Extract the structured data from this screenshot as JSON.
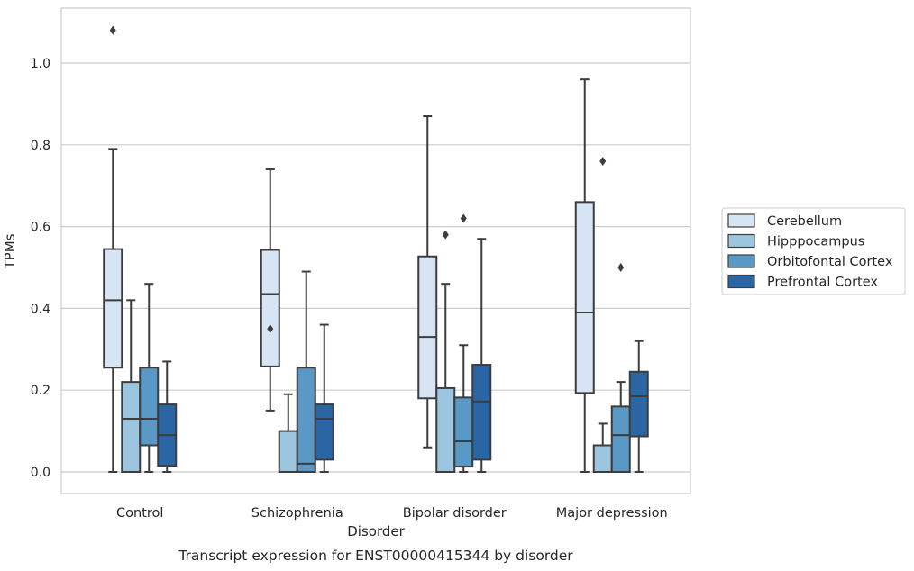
{
  "chart_data": {
    "type": "box",
    "title": "",
    "caption": "Transcript expression for ENST00000415344 by disorder",
    "xlabel": "Disorder",
    "ylabel": "TPMs",
    "ylim": [
      -0.05,
      1.14
    ],
    "yticks": [
      "0.0",
      "0.2",
      "0.4",
      "0.6",
      "0.8",
      "1.0"
    ],
    "grid": "horizontal",
    "legend_position": "right",
    "categories": [
      "Control",
      "Schizophrenia",
      "Bipolar disorder",
      "Major depression"
    ],
    "series": [
      {
        "name": "Cerebellum",
        "color": "#d6e4f3",
        "boxes": [
          {
            "whislo": 0.0,
            "q1": 0.255,
            "med": 0.42,
            "q3": 0.545,
            "whishi": 0.79,
            "fliers": [
              1.08
            ]
          },
          {
            "whislo": 0.15,
            "q1": 0.258,
            "med": 0.435,
            "q3": 0.543,
            "whishi": 0.74,
            "fliers": [
              0.35
            ]
          },
          {
            "whislo": 0.06,
            "q1": 0.18,
            "med": 0.33,
            "q3": 0.527,
            "whishi": 0.87,
            "fliers": []
          },
          {
            "whislo": 0.0,
            "q1": 0.193,
            "med": 0.39,
            "q3": 0.66,
            "whishi": 0.96,
            "fliers": []
          }
        ]
      },
      {
        "name": "Hipppocampus",
        "color": "#9cc5df",
        "boxes": [
          {
            "whislo": 0.0,
            "q1": 0.0,
            "med": 0.13,
            "q3": 0.22,
            "whishi": 0.42,
            "fliers": []
          },
          {
            "whislo": 0.0,
            "q1": 0.0,
            "med": 0.0,
            "q3": 0.1,
            "whishi": 0.19,
            "fliers": []
          },
          {
            "whislo": 0.0,
            "q1": 0.0,
            "med": 0.0,
            "q3": 0.205,
            "whishi": 0.46,
            "fliers": [
              0.58
            ]
          },
          {
            "whislo": 0.0,
            "q1": 0.0,
            "med": 0.0,
            "q3": 0.065,
            "whishi": 0.118,
            "fliers": [
              0.76
            ]
          }
        ]
      },
      {
        "name": "Orbitofontal Cortex",
        "color": "#5a98c6",
        "boxes": [
          {
            "whislo": 0.0,
            "q1": 0.065,
            "med": 0.13,
            "q3": 0.255,
            "whishi": 0.46,
            "fliers": []
          },
          {
            "whislo": 0.0,
            "q1": 0.0,
            "med": 0.02,
            "q3": 0.255,
            "whishi": 0.49,
            "fliers": []
          },
          {
            "whislo": 0.0,
            "q1": 0.013,
            "med": 0.075,
            "q3": 0.182,
            "whishi": 0.31,
            "fliers": [
              0.62
            ]
          },
          {
            "whislo": 0.0,
            "q1": 0.0,
            "med": 0.09,
            "q3": 0.16,
            "whishi": 0.22,
            "fliers": [
              0.5
            ]
          }
        ]
      },
      {
        "name": "Prefrontal Cortex",
        "color": "#2b66a4",
        "boxes": [
          {
            "whislo": 0.0,
            "q1": 0.015,
            "med": 0.09,
            "q3": 0.165,
            "whishi": 0.27,
            "fliers": []
          },
          {
            "whislo": 0.0,
            "q1": 0.03,
            "med": 0.13,
            "q3": 0.165,
            "whishi": 0.36,
            "fliers": []
          },
          {
            "whislo": 0.0,
            "q1": 0.03,
            "med": 0.172,
            "q3": 0.262,
            "whishi": 0.57,
            "fliers": []
          },
          {
            "whislo": 0.0,
            "q1": 0.087,
            "med": 0.185,
            "q3": 0.245,
            "whishi": 0.32,
            "fliers": []
          }
        ]
      }
    ]
  }
}
